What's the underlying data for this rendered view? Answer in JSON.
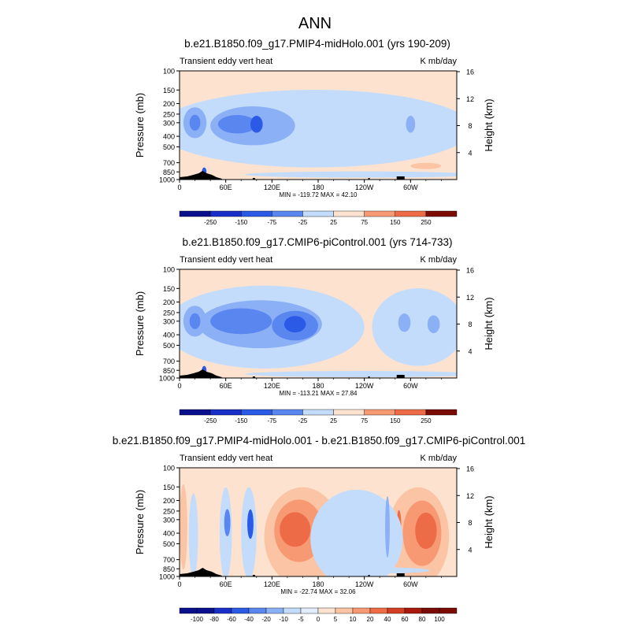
{
  "title": "ANN",
  "colors": {
    "blue": [
      "#0a0f8c",
      "#1a2fc8",
      "#2a5ae6",
      "#5a86f0",
      "#8cb0f5",
      "#c4dcfb"
    ],
    "red": [
      "#fde3cf",
      "#fbc4a4",
      "#f79a74",
      "#ee6b47",
      "#d43e22",
      "#a8190c",
      "#7a0b05"
    ],
    "terrain": "#000000"
  },
  "chart_data": [
    {
      "type": "heatmap",
      "title": "b.e21.B1850.f09_g17.PMIP4-midHolo.001 (yrs 190-209)",
      "left_label": "Transient eddy vert heat",
      "right_label": "K mb/day",
      "ylabel": "Pressure (mb)",
      "ylabel_right": "Height (km)",
      "yticks": [
        "100",
        "150",
        "200",
        "250",
        "300",
        "400",
        "500",
        "700",
        "850",
        "1000"
      ],
      "yticks_right": [
        "16",
        "12",
        "8",
        "4"
      ],
      "xticks": [
        "0",
        "60E",
        "120E",
        "180",
        "120W",
        "60W"
      ],
      "stats": "MIN = -119.72  MAX =  42.10",
      "colorbar": [
        "-250",
        "-150",
        "-75",
        "-25",
        "25",
        "75",
        "150",
        "250"
      ],
      "blobs": [
        {
          "lon": 175,
          "p": 340,
          "rx": 205,
          "ry": 230,
          "c": 5
        },
        {
          "lon": 288,
          "p": 340,
          "rx": 13,
          "ry": 170,
          "c": 5
        },
        {
          "lon": 95,
          "p": 320,
          "rx": 55,
          "ry": 125,
          "c": 4
        },
        {
          "lon": 20,
          "p": 300,
          "rx": 15,
          "ry": 95,
          "c": 4
        },
        {
          "lon": 20,
          "p": 300,
          "rx": 7,
          "ry": 50,
          "c": 3
        },
        {
          "lon": 75,
          "p": 310,
          "rx": 25,
          "ry": 60,
          "c": 3
        },
        {
          "lon": 100,
          "p": 310,
          "rx": 8,
          "ry": 55,
          "c": 2
        },
        {
          "lon": 300,
          "p": 310,
          "rx": 6,
          "ry": 55,
          "c": 4
        },
        {
          "lon": 32,
          "p": 850,
          "rx": 3,
          "ry": 80,
          "c": 2
        },
        {
          "lon": 235,
          "p": 900,
          "rx": 150,
          "ry": 25,
          "c": 5
        }
      ],
      "red_blobs": [
        {
          "lon": 160,
          "p": 720,
          "rx": 60,
          "ry": 35,
          "c": 0
        },
        {
          "lon": 320,
          "p": 750,
          "rx": 20,
          "ry": 30,
          "c": 1
        }
      ]
    },
    {
      "type": "heatmap",
      "title": "b.e21.B1850.f09_g17.CMIP6-piControl.001 (yrs 714-733)",
      "left_label": "Transient eddy vert heat",
      "right_label": "K mb/day",
      "ylabel": "Pressure (mb)",
      "ylabel_right": "Height (km)",
      "yticks": [
        "100",
        "150",
        "200",
        "250",
        "300",
        "400",
        "500",
        "700",
        "850",
        "1000"
      ],
      "yticks_right": [
        "16",
        "12",
        "8",
        "4"
      ],
      "xticks": [
        "0",
        "60E",
        "120E",
        "180",
        "120W",
        "60W"
      ],
      "stats": "MIN = -113.21  MAX =  27.84",
      "colorbar": [
        "-250",
        "-150",
        "-75",
        "-25",
        "25",
        "75",
        "150",
        "250"
      ],
      "blobs": [
        {
          "lon": 110,
          "p": 340,
          "rx": 130,
          "ry": 240,
          "c": 5
        },
        {
          "lon": 310,
          "p": 340,
          "rx": 60,
          "ry": 230,
          "c": 5
        },
        {
          "lon": 105,
          "p": 320,
          "rx": 80,
          "ry": 150,
          "c": 4
        },
        {
          "lon": 20,
          "p": 300,
          "rx": 15,
          "ry": 95,
          "c": 4
        },
        {
          "lon": 20,
          "p": 300,
          "rx": 7,
          "ry": 50,
          "c": 3
        },
        {
          "lon": 80,
          "p": 300,
          "rx": 40,
          "ry": 80,
          "c": 3
        },
        {
          "lon": 150,
          "p": 330,
          "rx": 30,
          "ry": 100,
          "c": 3
        },
        {
          "lon": 150,
          "p": 320,
          "rx": 14,
          "ry": 55,
          "c": 2
        },
        {
          "lon": 292,
          "p": 310,
          "rx": 8,
          "ry": 60,
          "c": 4
        },
        {
          "lon": 330,
          "p": 320,
          "rx": 8,
          "ry": 60,
          "c": 4
        },
        {
          "lon": 32,
          "p": 850,
          "rx": 3,
          "ry": 80,
          "c": 2
        },
        {
          "lon": 235,
          "p": 920,
          "rx": 150,
          "ry": 20,
          "c": 5
        }
      ],
      "red_blobs": []
    },
    {
      "type": "heatmap",
      "title": "b.e21.B1850.f09_g17.PMIP4-midHolo.001 - b.e21.B1850.f09_g17.CMIP6-piControl.001",
      "left_label": "Transient eddy vert heat",
      "right_label": "K mb/day",
      "ylabel": "Pressure (mb)",
      "ylabel_right": "Height (km)",
      "yticks": [
        "100",
        "150",
        "200",
        "250",
        "300",
        "400",
        "500",
        "700",
        "850",
        "1000"
      ],
      "yticks_right": [
        "16",
        "12",
        "8",
        "4"
      ],
      "xticks": [
        "0",
        "60E",
        "120E",
        "180",
        "120W",
        "60W"
      ],
      "stats": "MIN = -22.74  MAX =  32.06",
      "colorbar": [
        "-100",
        "-80",
        "-60",
        "-40",
        "-20",
        "-10",
        "-5",
        "0",
        "5",
        "10",
        "20",
        "40",
        "60",
        "80",
        "100"
      ],
      "blobs": [
        {
          "lon": 18,
          "p": 420,
          "rx": 6,
          "ry": 300,
          "c": 5
        },
        {
          "lon": 60,
          "p": 400,
          "rx": 8,
          "ry": 300,
          "c": 5
        },
        {
          "lon": 62,
          "p": 320,
          "rx": 4,
          "ry": 90,
          "c": 3
        },
        {
          "lon": 90,
          "p": 400,
          "rx": 10,
          "ry": 300,
          "c": 5
        },
        {
          "lon": 92,
          "p": 330,
          "rx": 4,
          "ry": 100,
          "c": 2
        },
        {
          "lon": 230,
          "p": 450,
          "rx": 60,
          "ry": 350,
          "c": 5
        },
        {
          "lon": 270,
          "p": 350,
          "rx": 3,
          "ry": 200,
          "c": 4
        },
        {
          "lon": 255,
          "p": 880,
          "rx": 70,
          "ry": 40,
          "c": 5
        }
      ],
      "red_blobs": [
        {
          "lon": 160,
          "p": 430,
          "rx": 50,
          "ry": 380,
          "c": 1
        },
        {
          "lon": 155,
          "p": 380,
          "rx": 32,
          "ry": 220,
          "c": 2
        },
        {
          "lon": 150,
          "p": 370,
          "rx": 20,
          "ry": 130,
          "c": 3
        },
        {
          "lon": 310,
          "p": 430,
          "rx": 40,
          "ry": 380,
          "c": 1
        },
        {
          "lon": 315,
          "p": 400,
          "rx": 25,
          "ry": 240,
          "c": 2
        },
        {
          "lon": 320,
          "p": 380,
          "rx": 14,
          "ry": 140,
          "c": 3
        },
        {
          "lon": 285,
          "p": 350,
          "rx": 3,
          "ry": 120,
          "c": 3
        },
        {
          "lon": 5,
          "p": 350,
          "rx": 5,
          "ry": 260,
          "c": 1
        }
      ]
    }
  ]
}
